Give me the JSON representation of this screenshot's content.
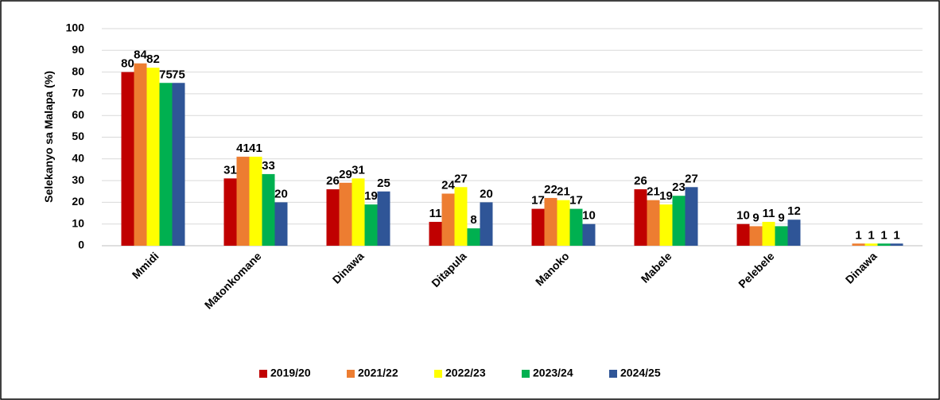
{
  "chart_data": {
    "type": "bar",
    "y_label": "Selekanyo sa Malapa (%)",
    "categories": [
      "Mmidi",
      "Matonkomane",
      "Dinawa",
      "Ditapula",
      "Manoko",
      "Mabele",
      "Pelebele",
      "Dinawa"
    ],
    "series": [
      {
        "name": "2019/20",
        "color": "#c00000",
        "values": [
          80,
          31,
          26,
          11,
          17,
          26,
          10,
          null
        ]
      },
      {
        "name": "2021/22",
        "color": "#ed7d31",
        "values": [
          84,
          41,
          29,
          24,
          22,
          21,
          9,
          1
        ]
      },
      {
        "name": "2022/23",
        "color": "#ffff00",
        "values": [
          82,
          41,
          31,
          27,
          21,
          19,
          11,
          1
        ]
      },
      {
        "name": "2023/24",
        "color": "#00b050",
        "values": [
          75,
          33,
          19,
          8,
          17,
          23,
          9,
          1
        ]
      },
      {
        "name": "2024/25",
        "color": "#2f5597",
        "values": [
          75,
          20,
          25,
          20,
          10,
          27,
          12,
          1
        ]
      }
    ],
    "ylim": [
      0,
      100
    ],
    "yticks": [
      0,
      10,
      20,
      30,
      40,
      50,
      60,
      70,
      80,
      90,
      100
    ],
    "grid": true,
    "legend": "bottom"
  }
}
